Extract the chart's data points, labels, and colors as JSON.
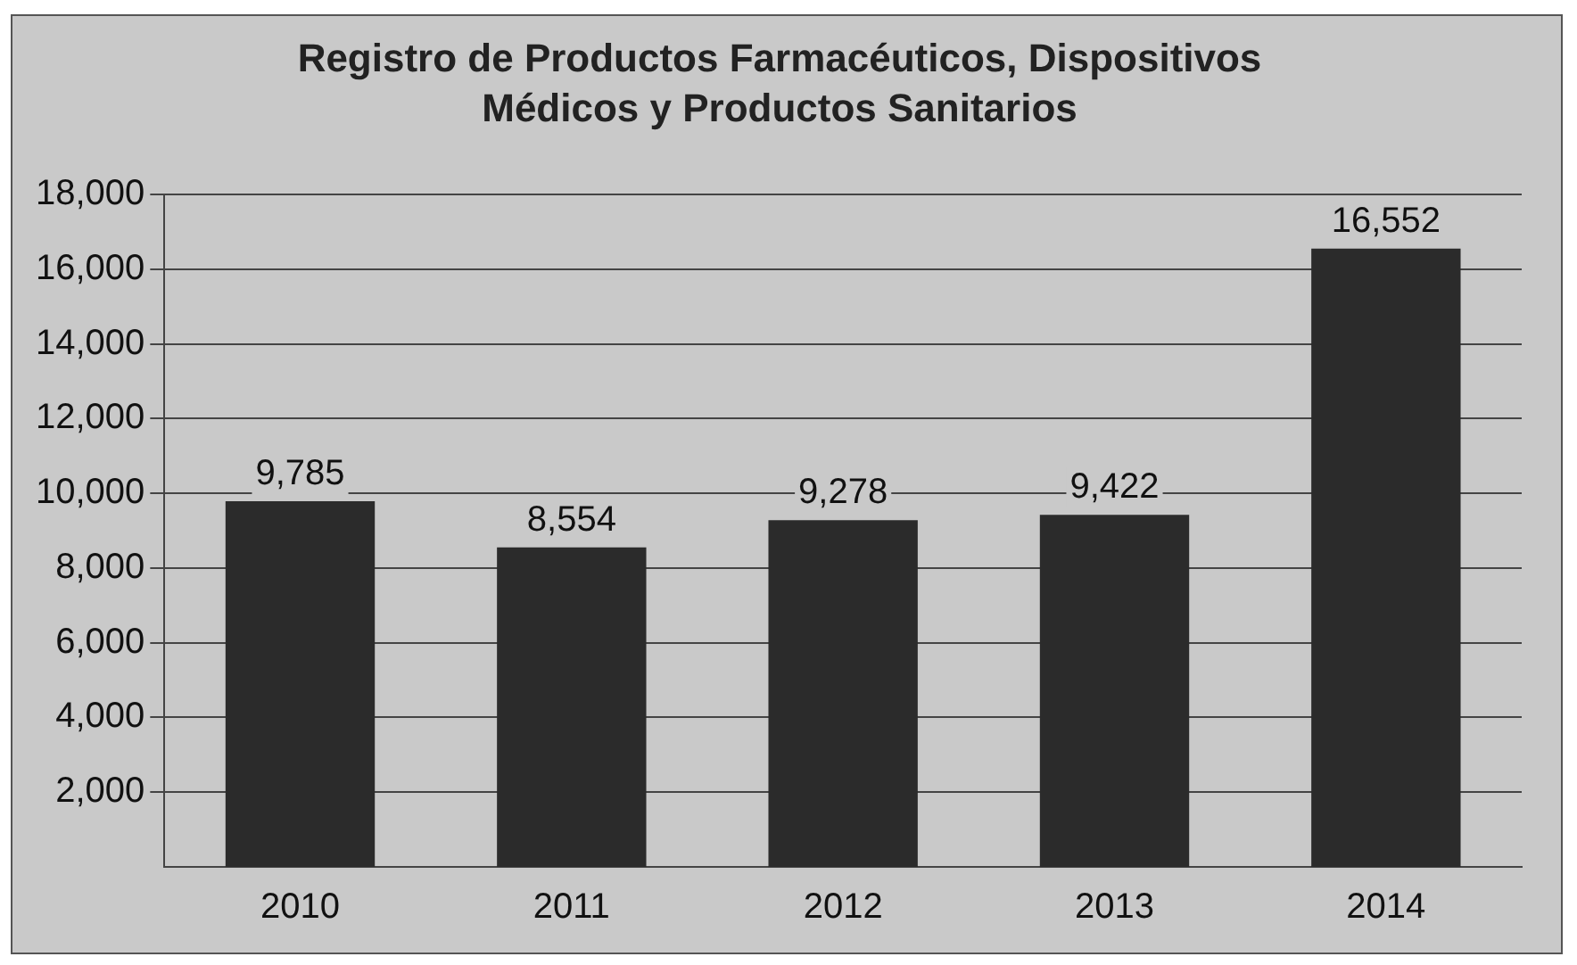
{
  "chart_data": {
    "type": "bar",
    "title": "Registro de Productos Farmacéuticos, Dispositivos Médicos y Productos Sanitarios",
    "categories": [
      "2010",
      "2011",
      "2012",
      "2013",
      "2014"
    ],
    "values": [
      9785,
      8554,
      9278,
      9422,
      16552
    ],
    "value_labels": [
      "9,785",
      "8,554",
      "9,278",
      "9,422",
      "16,552"
    ],
    "color": "#2b2b2b",
    "ylim": [
      0,
      18000
    ],
    "yticks": [
      {
        "value": 2000,
        "label": "2,000"
      },
      {
        "value": 4000,
        "label": "4,000"
      },
      {
        "value": 6000,
        "label": "6,000"
      },
      {
        "value": 8000,
        "label": "8,000"
      },
      {
        "value": 10000,
        "label": "10,000"
      },
      {
        "value": 12000,
        "label": "12,000"
      },
      {
        "value": 14000,
        "label": "14,000"
      },
      {
        "value": 16000,
        "label": "16,000"
      },
      {
        "value": 18000,
        "label": "18,000"
      }
    ],
    "grid": "y",
    "legend": false
  }
}
